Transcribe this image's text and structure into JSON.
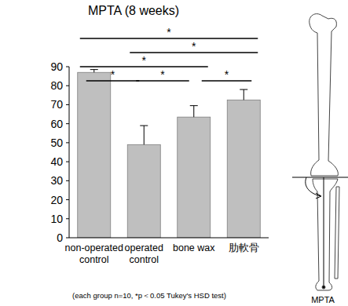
{
  "chart_data": {
    "type": "bar",
    "title": "MPTA (8 weeks)",
    "categories": [
      "non-operated control",
      "operated control",
      "bone wax",
      "肋軟骨"
    ],
    "values": [
      87,
      49,
      63.5,
      72.5
    ],
    "errors": [
      1.5,
      10,
      6,
      5.5
    ],
    "color": "#bfbfbf",
    "ylim": [
      0,
      90
    ],
    "yticks": [
      0,
      10,
      20,
      30,
      40,
      50,
      60,
      70,
      80,
      90
    ],
    "grid": false,
    "annotations": [
      {
        "between": [
          "non-operated control",
          "operated control"
        ],
        "text": "*"
      },
      {
        "between": [
          "operated control",
          "bone wax"
        ],
        "text": "*"
      },
      {
        "between": [
          "bone wax",
          "肋軟骨"
        ],
        "text": "*"
      },
      {
        "between": [
          "non-operated control",
          "bone wax"
        ],
        "text": "*"
      },
      {
        "between": [
          "operated control",
          "肋軟骨"
        ],
        "text": "*"
      },
      {
        "between": [
          "non-operated control",
          "肋軟骨"
        ],
        "text": "*"
      }
    ],
    "footnote": "(each group n=10,  *p＜0.05 Tukey's HSD test)",
    "diagram_label": "MPTA"
  }
}
